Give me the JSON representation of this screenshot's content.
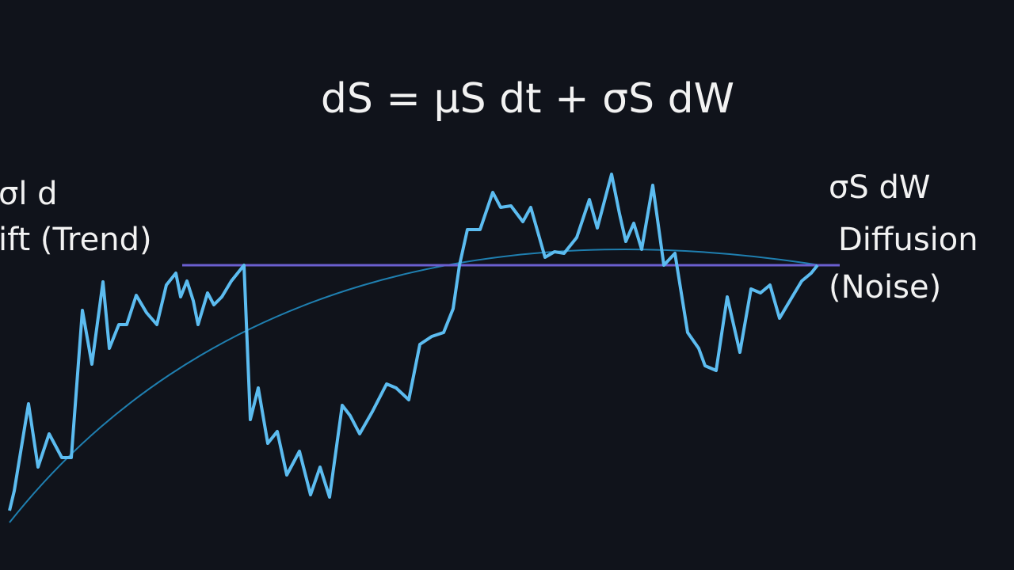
{
  "equation": "dS = μS dt + σS dW",
  "left_label": {
    "term": "σl d",
    "name": "ift (Trend)"
  },
  "right_label": {
    "term": "σS dW",
    "name": "Diffusion",
    "note": "(Noise)"
  }
}
